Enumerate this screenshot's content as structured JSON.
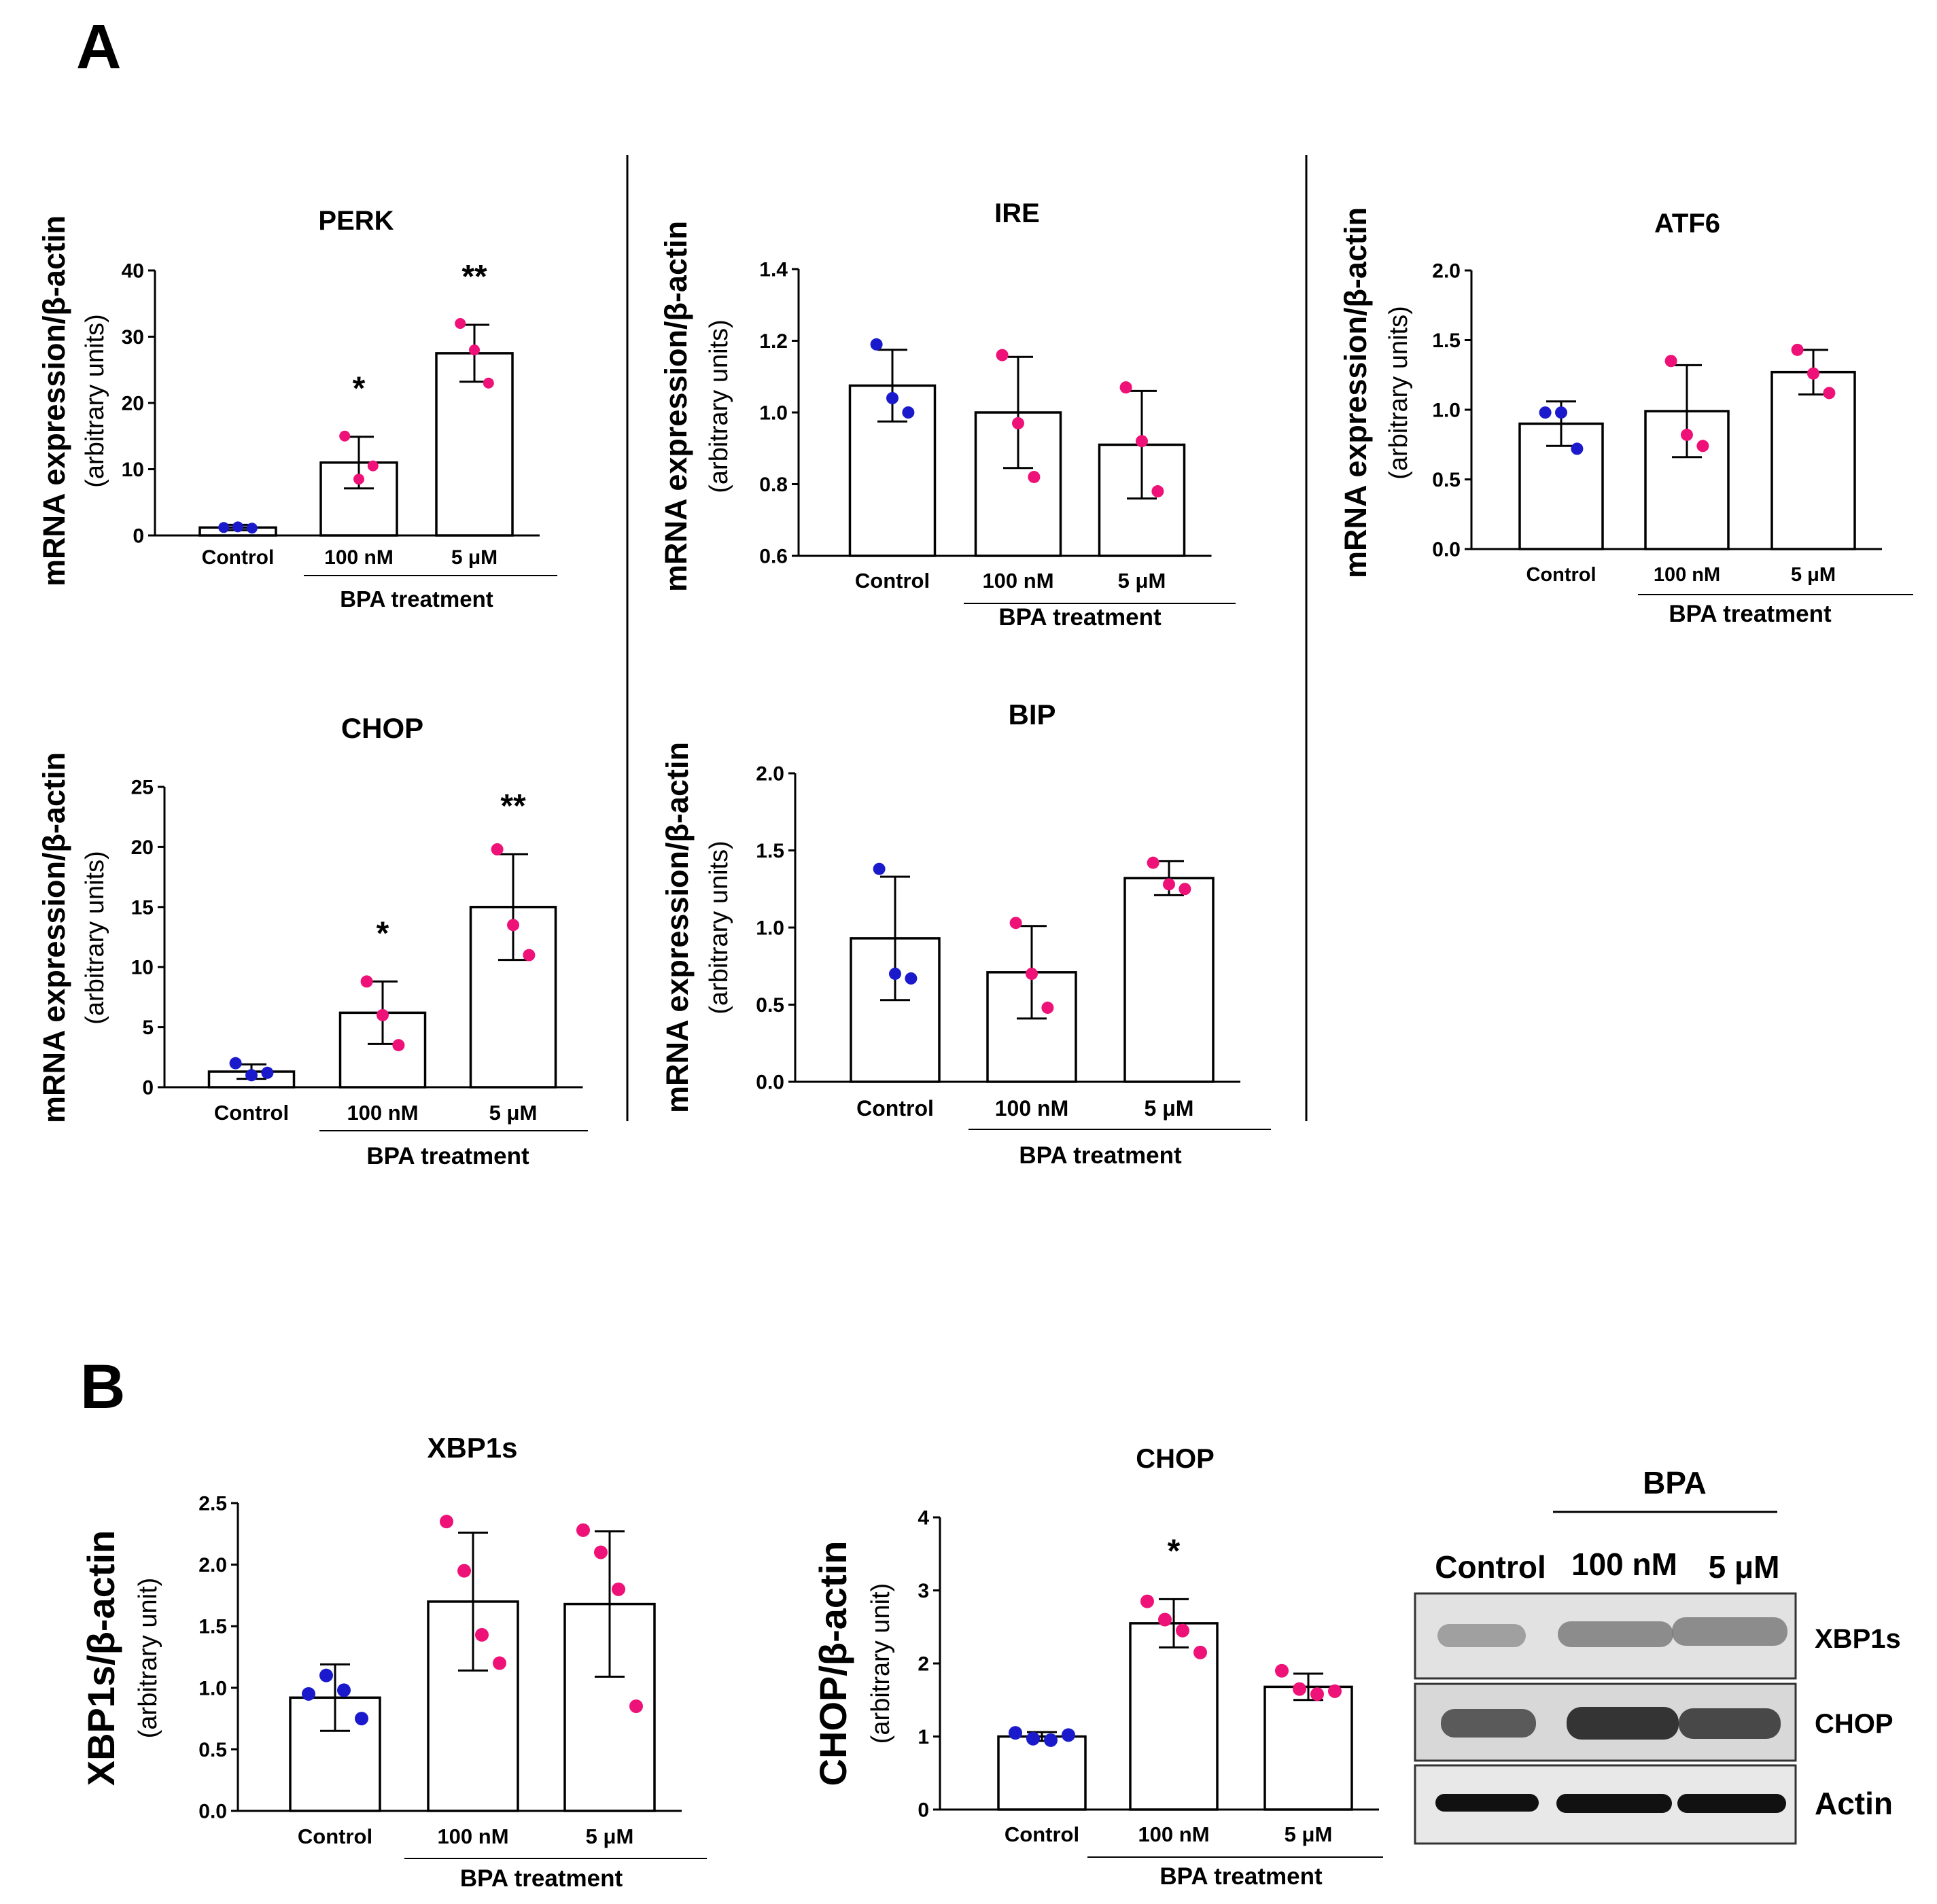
{
  "figure": {
    "panel_a_label": "A",
    "panel_b_label": "B",
    "blot": {
      "group_label": "BPA",
      "lane_labels": [
        "Control",
        "100 nM",
        "5 μM"
      ],
      "row_labels": [
        "XBP1s",
        "CHOP",
        "Actin"
      ]
    }
  },
  "colors": {
    "control": "#1a1acc",
    "bpa": "#ee1177",
    "bar_fill": "#ffffff",
    "stroke": "#000000"
  },
  "chart_data": [
    {
      "id": "perk",
      "type": "bar",
      "title": "PERK",
      "ylabel_main": "mRNA expression/β-actin",
      "ylabel_sub": "(arbitrary units)",
      "xlabel": "BPA treatment",
      "categories": [
        "Control",
        "100 nM",
        "5 μM"
      ],
      "ylim": [
        0,
        40
      ],
      "yticks": [
        0,
        10,
        20,
        30,
        40
      ],
      "tick_decimals": 0,
      "values": [
        1.2,
        11.0,
        27.5
      ],
      "errors": [
        0.4,
        3.9,
        4.3
      ],
      "points": [
        [
          1.2,
          1.3,
          1.1
        ],
        [
          15.0,
          8.5,
          10.5
        ],
        [
          32.0,
          28.0,
          23.0
        ]
      ],
      "significance": [
        "",
        "*",
        "**"
      ]
    },
    {
      "id": "ire",
      "type": "bar",
      "title": "IRE",
      "ylabel_main": "mRNA expression/β-actin",
      "ylabel_sub": "(arbitrary units)",
      "xlabel": "BPA treatment",
      "categories": [
        "Control",
        "100 nM",
        "5 μM"
      ],
      "ylim": [
        0.6,
        1.4
      ],
      "yticks": [
        0.6,
        0.8,
        1.0,
        1.2,
        1.4
      ],
      "tick_decimals": 1,
      "values": [
        1.075,
        1.0,
        0.91
      ],
      "errors": [
        0.1,
        0.155,
        0.15
      ],
      "points": [
        [
          1.19,
          1.04,
          1.0
        ],
        [
          1.16,
          0.97,
          0.82
        ],
        [
          1.07,
          0.92,
          0.78
        ]
      ],
      "significance": [
        "",
        "",
        ""
      ]
    },
    {
      "id": "atf6",
      "type": "bar",
      "title": "ATF6",
      "ylabel_main": "mRNA expression/β-actin",
      "ylabel_sub": "(arbitrary units)",
      "xlabel": "BPA treatment",
      "categories": [
        "Control",
        "100 nM",
        "5 μM"
      ],
      "ylim": [
        0,
        2.0
      ],
      "yticks": [
        0.0,
        0.5,
        1.0,
        1.5,
        2.0
      ],
      "tick_decimals": 1,
      "values": [
        0.9,
        0.99,
        1.27
      ],
      "errors": [
        0.16,
        0.33,
        0.16
      ],
      "points": [
        [
          0.98,
          0.98,
          0.72
        ],
        [
          1.35,
          0.82,
          0.74
        ],
        [
          1.43,
          1.26,
          1.12
        ]
      ],
      "significance": [
        "",
        "",
        ""
      ]
    },
    {
      "id": "chop_a",
      "type": "bar",
      "title": "CHOP",
      "ylabel_main": "mRNA expression/β-actin",
      "ylabel_sub": "(arbitrary units)",
      "xlabel": "BPA treatment",
      "categories": [
        "Control",
        "100 nM",
        "5 μM"
      ],
      "ylim": [
        0,
        25
      ],
      "yticks": [
        0,
        5,
        10,
        15,
        20,
        25
      ],
      "tick_decimals": 0,
      "values": [
        1.3,
        6.2,
        15.0
      ],
      "errors": [
        0.6,
        2.6,
        4.4
      ],
      "points": [
        [
          2.0,
          1.0,
          1.2
        ],
        [
          8.8,
          6.0,
          3.5
        ],
        [
          19.8,
          13.5,
          11.0
        ]
      ],
      "significance": [
        "",
        "*",
        "**"
      ]
    },
    {
      "id": "bip",
      "type": "bar",
      "title": "BIP",
      "ylabel_main": "mRNA expression/β-actin",
      "ylabel_sub": "(arbitrary units)",
      "xlabel": "BPA treatment",
      "categories": [
        "Control",
        "100 nM",
        "5 μM"
      ],
      "ylim": [
        0,
        2.0
      ],
      "yticks": [
        0.0,
        0.5,
        1.0,
        1.5,
        2.0
      ],
      "tick_decimals": 1,
      "values": [
        0.93,
        0.71,
        1.32
      ],
      "errors": [
        0.4,
        0.3,
        0.11
      ],
      "points": [
        [
          1.38,
          0.7,
          0.67
        ],
        [
          1.03,
          0.7,
          0.48
        ],
        [
          1.42,
          1.28,
          1.25
        ]
      ],
      "significance": [
        "",
        "",
        ""
      ]
    },
    {
      "id": "xbp1s",
      "type": "bar",
      "title": "XBP1s",
      "ylabel_main": "XBP1s/β-actin",
      "ylabel_sub": "(arbitrary unit)",
      "xlabel": "BPA treatment",
      "categories": [
        "Control",
        "100 nM",
        "5 μM"
      ],
      "ylim": [
        0,
        2.5
      ],
      "yticks": [
        0.0,
        0.5,
        1.0,
        1.5,
        2.0,
        2.5
      ],
      "tick_decimals": 1,
      "values": [
        0.92,
        1.7,
        1.68
      ],
      "errors": [
        0.27,
        0.56,
        0.59
      ],
      "points": [
        [
          0.95,
          1.1,
          0.98,
          0.75
        ],
        [
          2.35,
          1.95,
          1.43,
          1.2
        ],
        [
          2.28,
          2.1,
          1.8,
          0.85
        ]
      ],
      "significance": [
        "",
        "",
        ""
      ]
    },
    {
      "id": "chop_b",
      "type": "bar",
      "title": "CHOP",
      "ylabel_main": "CHOP/β-actin",
      "ylabel_sub": "(arbitrary unit)",
      "xlabel": "BPA treatment",
      "categories": [
        "Control",
        "100 nM",
        "5 μM"
      ],
      "ylim": [
        0,
        4
      ],
      "yticks": [
        0,
        1,
        2,
        3,
        4
      ],
      "tick_decimals": 0,
      "values": [
        1.0,
        2.55,
        1.68
      ],
      "errors": [
        0.06,
        0.33,
        0.18
      ],
      "points": [
        [
          1.05,
          0.97,
          0.95,
          1.02
        ],
        [
          2.85,
          2.6,
          2.45,
          2.15
        ],
        [
          1.9,
          1.65,
          1.58,
          1.62
        ]
      ],
      "significance": [
        "",
        "*",
        ""
      ]
    }
  ]
}
